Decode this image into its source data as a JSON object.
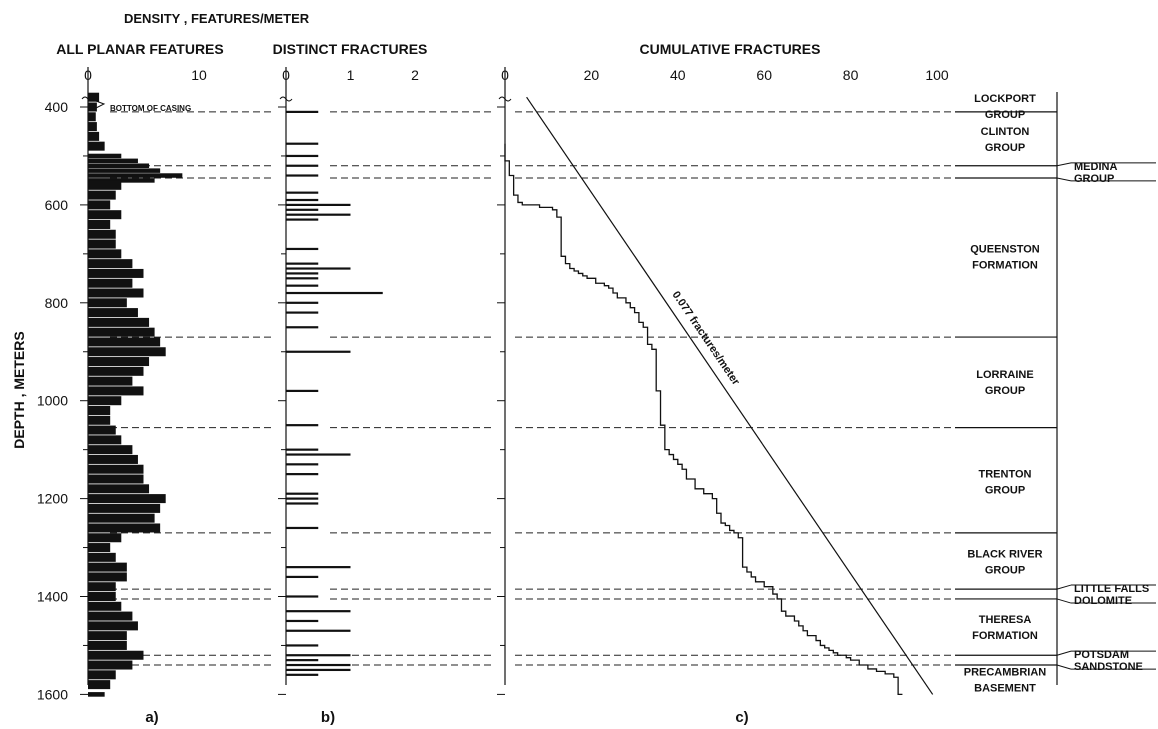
{
  "figure": {
    "top_title": "DENSITY , FEATURES/METER",
    "y_axis_label": "DEPTH , METERS",
    "casing_note": "BOTTOM OF CASING",
    "slope_label": "0.077 fractures/meter",
    "panel_labels": [
      "a)",
      "b)",
      "c)"
    ]
  },
  "chart_data": [
    {
      "type": "bar",
      "panel": "a)",
      "title": "ALL PLANAR FEATURES",
      "ylabel": "DEPTH , METERS",
      "xlim": [
        0,
        10
      ],
      "ylim": [
        1600,
        360
      ],
      "x_ticks": [
        "0",
        "10"
      ],
      "y_ticks": [
        "400",
        "600",
        "800",
        "1000",
        "1200",
        "1400",
        "1600"
      ],
      "profile": [
        [
          380,
          1
        ],
        [
          400,
          0.8
        ],
        [
          420,
          0.7
        ],
        [
          440,
          0.8
        ],
        [
          460,
          1.0
        ],
        [
          480,
          1.5
        ],
        [
          500,
          3.0
        ],
        [
          510,
          4.5
        ],
        [
          520,
          5.5
        ],
        [
          530,
          6.5
        ],
        [
          540,
          8.5
        ],
        [
          550,
          6.0
        ],
        [
          560,
          3.0
        ],
        [
          580,
          2.5
        ],
        [
          600,
          2.0
        ],
        [
          620,
          3.0
        ],
        [
          640,
          2.0
        ],
        [
          660,
          2.5
        ],
        [
          680,
          2.5
        ],
        [
          700,
          3.0
        ],
        [
          720,
          4.0
        ],
        [
          740,
          5.0
        ],
        [
          760,
          4.0
        ],
        [
          780,
          5.0
        ],
        [
          800,
          3.5
        ],
        [
          820,
          4.5
        ],
        [
          840,
          5.5
        ],
        [
          860,
          6.0
        ],
        [
          880,
          6.5
        ],
        [
          900,
          7.0
        ],
        [
          920,
          5.5
        ],
        [
          940,
          5.0
        ],
        [
          960,
          4.0
        ],
        [
          980,
          5.0
        ],
        [
          1000,
          3.0
        ],
        [
          1020,
          2.0
        ],
        [
          1040,
          2.0
        ],
        [
          1060,
          2.5
        ],
        [
          1080,
          3.0
        ],
        [
          1100,
          4.0
        ],
        [
          1120,
          4.5
        ],
        [
          1140,
          5.0
        ],
        [
          1160,
          5.0
        ],
        [
          1180,
          5.5
        ],
        [
          1200,
          7.0
        ],
        [
          1220,
          6.5
        ],
        [
          1240,
          6.0
        ],
        [
          1260,
          6.5
        ],
        [
          1280,
          3.0
        ],
        [
          1300,
          2.0
        ],
        [
          1320,
          2.5
        ],
        [
          1340,
          3.5
        ],
        [
          1360,
          3.5
        ],
        [
          1380,
          2.5
        ],
        [
          1400,
          2.5
        ],
        [
          1420,
          3.0
        ],
        [
          1440,
          4.0
        ],
        [
          1460,
          4.5
        ],
        [
          1480,
          3.5
        ],
        [
          1500,
          3.5
        ],
        [
          1520,
          5.0
        ],
        [
          1540,
          4.0
        ],
        [
          1560,
          2.5
        ],
        [
          1580,
          2.0
        ],
        [
          1600,
          1.5
        ]
      ]
    },
    {
      "type": "bar",
      "panel": "b)",
      "title": "DISTINCT FRACTURES",
      "xlim": [
        0,
        2
      ],
      "ylim": [
        1600,
        360
      ],
      "x_ticks": [
        "0",
        "1",
        "2"
      ],
      "profile": [
        [
          410,
          0.5
        ],
        [
          475,
          0.5
        ],
        [
          500,
          0.5
        ],
        [
          520,
          0.5
        ],
        [
          540,
          0.5
        ],
        [
          575,
          0.5
        ],
        [
          590,
          0.5
        ],
        [
          600,
          1.0
        ],
        [
          610,
          0.5
        ],
        [
          620,
          1.0
        ],
        [
          630,
          0.5
        ],
        [
          690,
          0.5
        ],
        [
          720,
          0.5
        ],
        [
          730,
          1.0
        ],
        [
          740,
          0.5
        ],
        [
          750,
          0.5
        ],
        [
          765,
          0.5
        ],
        [
          780,
          1.5
        ],
        [
          800,
          0.5
        ],
        [
          820,
          0.5
        ],
        [
          850,
          0.5
        ],
        [
          900,
          1.0
        ],
        [
          980,
          0.5
        ],
        [
          1050,
          0.5
        ],
        [
          1100,
          0.5
        ],
        [
          1110,
          1.0
        ],
        [
          1130,
          0.5
        ],
        [
          1150,
          0.5
        ],
        [
          1190,
          0.5
        ],
        [
          1200,
          0.5
        ],
        [
          1210,
          0.5
        ],
        [
          1260,
          0.5
        ],
        [
          1340,
          1.0
        ],
        [
          1360,
          0.5
        ],
        [
          1400,
          0.5
        ],
        [
          1430,
          1.0
        ],
        [
          1450,
          0.5
        ],
        [
          1470,
          1.0
        ],
        [
          1500,
          0.5
        ],
        [
          1520,
          1.0
        ],
        [
          1530,
          0.5
        ],
        [
          1540,
          1.0
        ],
        [
          1550,
          1.0
        ],
        [
          1560,
          0.5
        ]
      ]
    },
    {
      "type": "line",
      "panel": "c)",
      "title": "CUMULATIVE FRACTURES",
      "xlim": [
        0,
        100
      ],
      "ylim": [
        1600,
        360
      ],
      "x_ticks": [
        "0",
        "20",
        "40",
        "60",
        "80",
        "100"
      ],
      "series": [
        {
          "points": [
            [
              0,
              475
            ],
            [
              1,
              510
            ],
            [
              2,
              540
            ],
            [
              3,
              580
            ],
            [
              4,
              595
            ],
            [
              8,
              600
            ],
            [
              11,
              605
            ],
            [
              12,
              610
            ],
            [
              13,
              625
            ],
            [
              14,
              705
            ],
            [
              15,
              720
            ],
            [
              16,
              730
            ],
            [
              17,
              735
            ],
            [
              18,
              740
            ],
            [
              19,
              745
            ],
            [
              21,
              750
            ],
            [
              23,
              760
            ],
            [
              24,
              765
            ],
            [
              25,
              770
            ],
            [
              26,
              780
            ],
            [
              28,
              790
            ],
            [
              29,
              800
            ],
            [
              30,
              810
            ],
            [
              31,
              820
            ],
            [
              32,
              840
            ],
            [
              33,
              850
            ],
            [
              34,
              885
            ],
            [
              35,
              895
            ],
            [
              36,
              980
            ],
            [
              37,
              1050
            ],
            [
              38,
              1100
            ],
            [
              39,
              1110
            ],
            [
              40,
              1120
            ],
            [
              41,
              1130
            ],
            [
              42,
              1140
            ],
            [
              44,
              1160
            ],
            [
              46,
              1180
            ],
            [
              48,
              1190
            ],
            [
              49,
              1200
            ],
            [
              50,
              1230
            ],
            [
              51,
              1250
            ],
            [
              52,
              1255
            ],
            [
              53,
              1265
            ],
            [
              54,
              1270
            ],
            [
              55,
              1280
            ],
            [
              56,
              1340
            ],
            [
              57,
              1350
            ],
            [
              58,
              1360
            ],
            [
              60,
              1370
            ],
            [
              62,
              1380
            ],
            [
              63,
              1395
            ],
            [
              64,
              1405
            ],
            [
              65,
              1430
            ],
            [
              67,
              1440
            ],
            [
              68,
              1450
            ],
            [
              69,
              1460
            ],
            [
              70,
              1470
            ],
            [
              72,
              1480
            ],
            [
              73,
              1490
            ],
            [
              74,
              1500
            ],
            [
              75,
              1505
            ],
            [
              76,
              1510
            ],
            [
              77,
              1515
            ],
            [
              79,
              1520
            ],
            [
              80,
              1525
            ],
            [
              82,
              1530
            ],
            [
              84,
              1540
            ],
            [
              86,
              1548
            ],
            [
              88,
              1553
            ],
            [
              90,
              1558
            ],
            [
              91,
              1565
            ],
            [
              92,
              1600
            ]
          ]
        }
      ],
      "reference_line": {
        "label": "0.077 fractures/meter",
        "from": [
          5,
          380
        ],
        "to": [
          99,
          1600
        ]
      }
    }
  ],
  "formations": {
    "boundaries": [
      410,
      520,
      545,
      870,
      1055,
      1270,
      1385,
      1405,
      1520,
      1540
    ],
    "main_labels": [
      {
        "lines": [
          "LOCKPORT",
          "GROUP"
        ],
        "depth": 398
      },
      {
        "lines": [
          "CLINTON",
          "GROUP"
        ],
        "depth": 465
      },
      {
        "lines": [
          "QUEENSTON",
          "FORMATION"
        ],
        "depth": 705
      },
      {
        "lines": [
          "LORRAINE",
          "GROUP"
        ],
        "depth": 962
      },
      {
        "lines": [
          "TRENTON",
          "GROUP"
        ],
        "depth": 1165
      },
      {
        "lines": [
          "BLACK RIVER",
          "GROUP"
        ],
        "depth": 1328
      },
      {
        "lines": [
          "THERESA",
          "FORMATION"
        ],
        "depth": 1462
      },
      {
        "lines": [
          "PRECAMBRIAN",
          "BASEMENT"
        ],
        "depth": 1570
      }
    ],
    "side_labels": [
      {
        "lines": [
          "MEDINA",
          "GROUP"
        ],
        "from": 520,
        "to": 545
      },
      {
        "lines": [
          "LITTLE FALLS",
          "DOLOMITE"
        ],
        "from": 1385,
        "to": 1405
      },
      {
        "lines": [
          "POTSDAM",
          "SANDSTONE"
        ],
        "from": 1520,
        "to": 1540
      }
    ]
  }
}
